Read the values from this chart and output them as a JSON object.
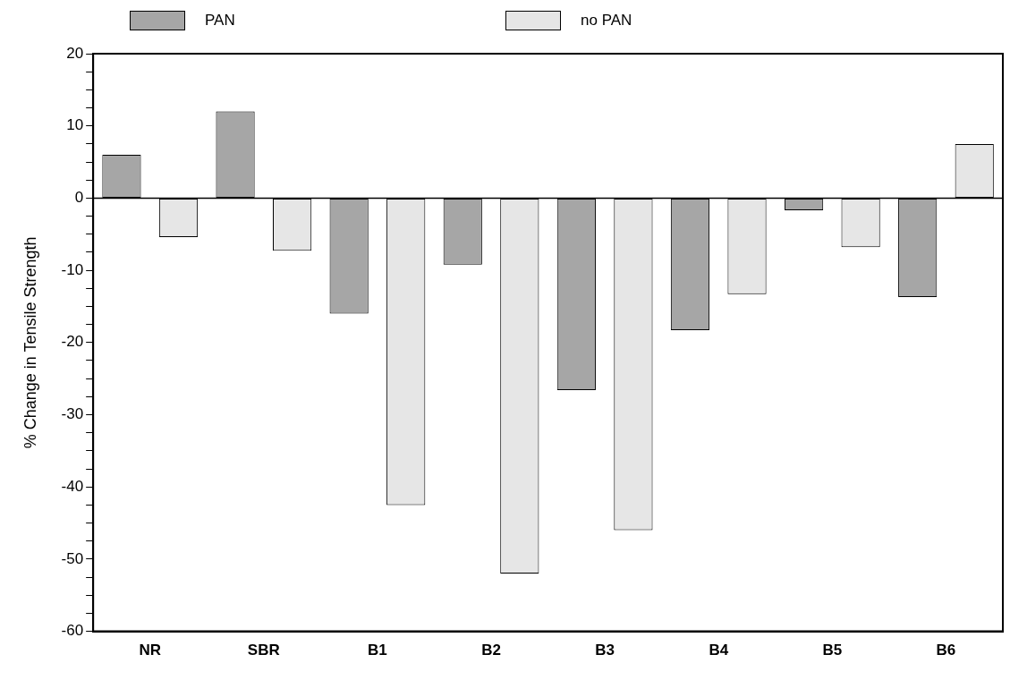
{
  "chart_data": {
    "type": "bar",
    "ylabel": "% Change in Tensile Strength",
    "categories": [
      "NR",
      "SBR",
      "B1",
      "B2",
      "B3",
      "B4",
      "B5",
      "B6"
    ],
    "series": [
      {
        "name": "PAN",
        "color": "#a6a6a6",
        "values": [
          6,
          12,
          -16,
          -9.2,
          -26.6,
          -18.3,
          -1.7,
          -13.7
        ]
      },
      {
        "name": "no PAN",
        "color": "#e6e6e6",
        "values": [
          -5.4,
          -7.3,
          -42.5,
          -52,
          -46,
          -13.3,
          -6.8,
          7.5
        ]
      }
    ],
    "ylim": [
      -60,
      20
    ],
    "yticks": [
      -60,
      {
        "value": -57.5,
        "label": null
      },
      {
        "value": -55,
        "label": null
      },
      {
        "value": -52.5,
        "label": null
      },
      -50,
      {
        "value": -47.5,
        "label": null
      },
      {
        "value": -45,
        "label": null
      },
      {
        "value": -42.5,
        "label": null
      },
      -40,
      {
        "value": -37.5,
        "label": null
      },
      {
        "value": -35,
        "label": null
      },
      {
        "value": -32.5,
        "label": null
      },
      -30,
      {
        "value": -27.5,
        "label": null
      },
      {
        "value": -25,
        "label": null
      },
      {
        "value": -22.5,
        "label": null
      },
      -20,
      {
        "value": -17.5,
        "label": null
      },
      {
        "value": -15,
        "label": null
      },
      {
        "value": -12.5,
        "label": null
      },
      -10,
      {
        "value": -7.5,
        "label": null
      },
      {
        "value": -5,
        "label": null
      },
      {
        "value": -2.5,
        "label": null
      },
      0,
      {
        "value": 2.5,
        "label": null
      },
      {
        "value": 5,
        "label": null
      },
      {
        "value": 7.5,
        "label": null
      },
      10,
      {
        "value": 12.5,
        "label": null
      },
      {
        "value": 15,
        "label": null
      },
      {
        "value": 17.5,
        "label": null
      },
      20
    ],
    "ref_lines": [
      {
        "axis": "y",
        "value": 0,
        "color": "#000000"
      }
    ],
    "grid": false,
    "legend": "top"
  }
}
